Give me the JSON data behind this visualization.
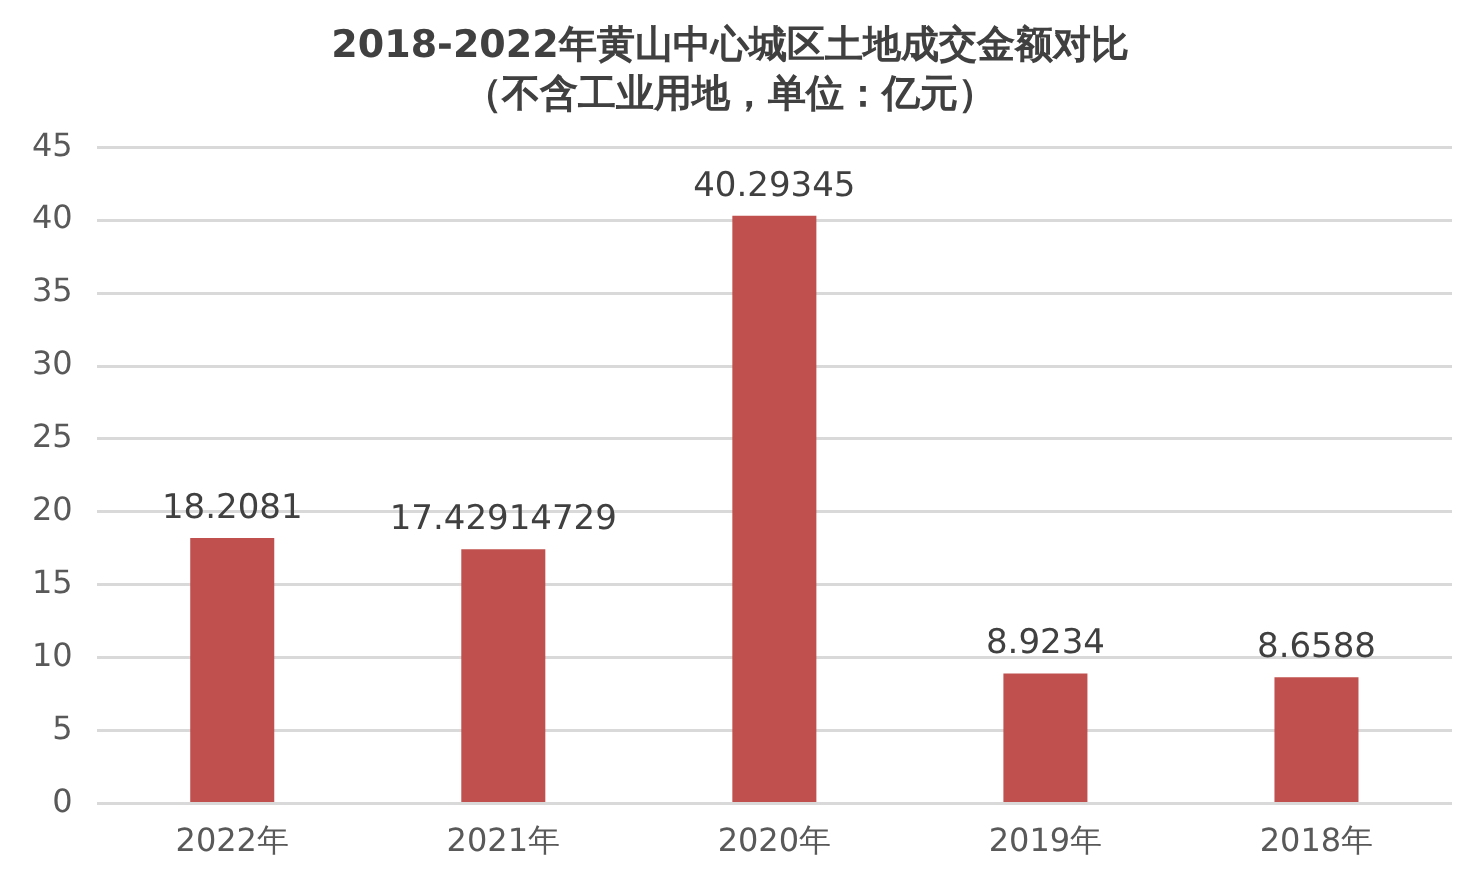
{
  "chart_data": {
    "type": "bar",
    "title": "2018-2022年黄山中心城区土地成交金额对比",
    "subtitle": "（不含工业用地，单位：亿元）",
    "categories": [
      "2022年",
      "2021年",
      "2020年",
      "2019年",
      "2018年"
    ],
    "values": [
      18.2081,
      17.42914729,
      40.29345,
      8.9234,
      8.6588
    ],
    "color": "#c0504d",
    "ylim": [
      0,
      45
    ],
    "yticks": [
      0,
      5,
      10,
      15,
      20,
      25,
      30,
      35,
      40,
      45
    ],
    "grid": "y",
    "data_labels": true
  }
}
